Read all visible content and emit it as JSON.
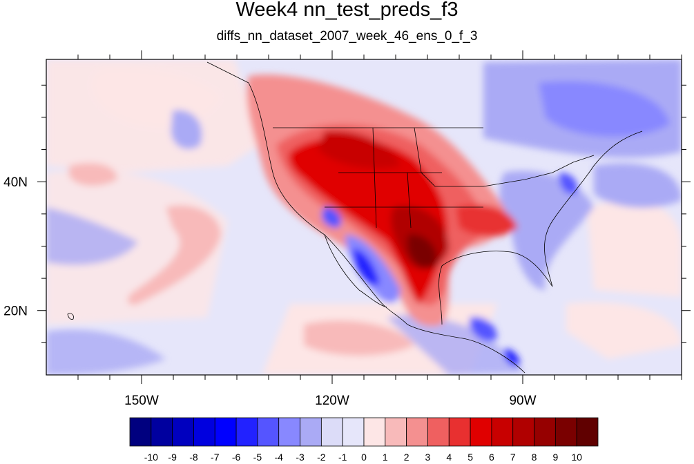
{
  "title": "Week4 nn_test_preds_f3",
  "subtitle": "diffs_nn_dataset_2007_week_46_ens_0_f_3",
  "map": {
    "lon_range": [
      -165,
      -65
    ],
    "lat_range": [
      10,
      59
    ],
    "background_color": "#e6e6fa",
    "x_ticks": [
      {
        "lon": -150,
        "label": "150W"
      },
      {
        "lon": -120,
        "label": "120W"
      },
      {
        "lon": -90,
        "label": "90W"
      }
    ],
    "y_ticks": [
      {
        "lat": 40,
        "label": "40N"
      },
      {
        "lat": 20,
        "label": "20N"
      }
    ]
  },
  "colorbar": {
    "labels": [
      "-10",
      "-9",
      "-8",
      "-7",
      "-6",
      "-5",
      "-4",
      "-3",
      "-2",
      "-1",
      "0",
      "1",
      "2",
      "3",
      "4",
      "5",
      "6",
      "7",
      "8",
      "9",
      "10"
    ],
    "colors": [
      "#00007f",
      "#00009f",
      "#0000bf",
      "#0000df",
      "#0000ff",
      "#2222ff",
      "#5555ff",
      "#8888ff",
      "#aaaaf5",
      "#dcdcf8",
      "#e6e6fa",
      "#fde6e6",
      "#f8baba",
      "#f49090",
      "#ef6060",
      "#e83030",
      "#e00000",
      "#c80000",
      "#b00000",
      "#960000",
      "#7a0000",
      "#600000"
    ]
  },
  "chart_data": {
    "type": "heatmap",
    "title": "Week4 nn_test_preds_f3",
    "subtitle": "diffs_nn_dataset_2007_week_46_ens_0_f_3",
    "value_range": [
      -10,
      10
    ],
    "xlim": [
      -165,
      -65
    ],
    "ylim": [
      10,
      59
    ],
    "regions": [
      {
        "lon": -110,
        "lat": 39,
        "value": 5
      },
      {
        "lon": -104,
        "lat": 44,
        "value": 6
      },
      {
        "lon": -114,
        "lat": 44,
        "value": 5
      },
      {
        "lon": -100,
        "lat": 30,
        "value": 8
      },
      {
        "lon": -103,
        "lat": 27,
        "value": 9
      },
      {
        "lon": -98,
        "lat": 20,
        "value": 6
      },
      {
        "lon": -88,
        "lat": 36,
        "value": 4
      },
      {
        "lon": -110,
        "lat": 29,
        "value": -4
      },
      {
        "lon": -114,
        "lat": 26,
        "value": -5
      },
      {
        "lon": -80,
        "lat": 51,
        "value": -3
      },
      {
        "lon": -88,
        "lat": 17,
        "value": -4
      },
      {
        "lon": -142,
        "lat": 31,
        "value": 2
      },
      {
        "lon": -150,
        "lat": 25,
        "value": -2
      },
      {
        "lon": -140,
        "lat": 42,
        "value": -2
      }
    ]
  }
}
